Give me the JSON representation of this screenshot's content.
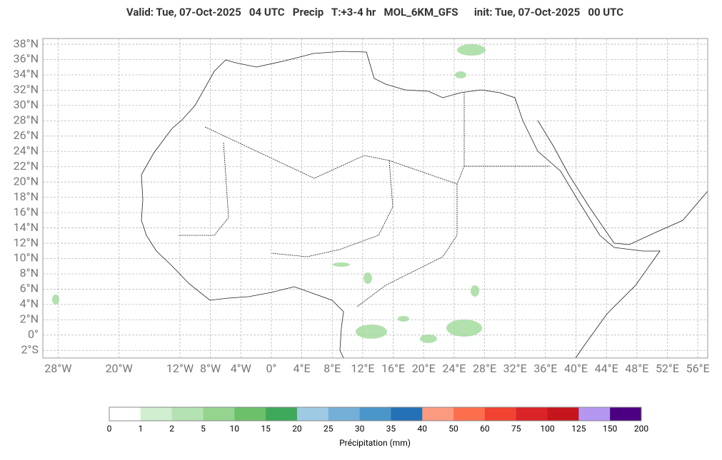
{
  "header": {
    "title": "Valid: Tue, 07-Oct-2025   04 UTC   Precip   T:+3-4 hr   MOL_6KM_GFS      init: Tue, 07-Oct-2025   00 UTC"
  },
  "map": {
    "lat_ticks": [
      {
        "value": 38,
        "label": "38°N"
      },
      {
        "value": 36,
        "label": "36°N"
      },
      {
        "value": 34,
        "label": "34°N"
      },
      {
        "value": 32,
        "label": "32°N"
      },
      {
        "value": 30,
        "label": "30°N"
      },
      {
        "value": 28,
        "label": "28°N"
      },
      {
        "value": 26,
        "label": "26°N"
      },
      {
        "value": 24,
        "label": "24°N"
      },
      {
        "value": 22,
        "label": "22°N"
      },
      {
        "value": 20,
        "label": "20°N"
      },
      {
        "value": 18,
        "label": "18°N"
      },
      {
        "value": 16,
        "label": "16°N"
      },
      {
        "value": 14,
        "label": "14°N"
      },
      {
        "value": 12,
        "label": "12°N"
      },
      {
        "value": 10,
        "label": "10°N"
      },
      {
        "value": 8,
        "label": "8°N"
      },
      {
        "value": 6,
        "label": "6°N"
      },
      {
        "value": 4,
        "label": "4°N"
      },
      {
        "value": 2,
        "label": "2°N"
      },
      {
        "value": 0,
        "label": "0°"
      },
      {
        "value": -2,
        "label": "2°S"
      }
    ],
    "lon_ticks": [
      {
        "value": -28,
        "label": "28°W"
      },
      {
        "value": -20,
        "label": "20°W"
      },
      {
        "value": -12,
        "label": "12°W"
      },
      {
        "value": -8,
        "label": "8°W"
      },
      {
        "value": -4,
        "label": "4°W"
      },
      {
        "value": 0,
        "label": "0°"
      },
      {
        "value": 4,
        "label": "4°E"
      },
      {
        "value": 8,
        "label": "8°E"
      },
      {
        "value": 12,
        "label": "12°E"
      },
      {
        "value": 16,
        "label": "16°E"
      },
      {
        "value": 20,
        "label": "20°E"
      },
      {
        "value": 24,
        "label": "24°E"
      },
      {
        "value": 28,
        "label": "28°E"
      },
      {
        "value": 32,
        "label": "32°E"
      },
      {
        "value": 36,
        "label": "36°E"
      },
      {
        "value": 40,
        "label": "40°E"
      },
      {
        "value": 44,
        "label": "44°E"
      },
      {
        "value": 48,
        "label": "48°E"
      },
      {
        "value": 52,
        "label": "52°E"
      },
      {
        "value": 56,
        "label": "56°E"
      }
    ]
  },
  "colorbar": {
    "label": "Précipitation (mm)",
    "bounds": [
      0,
      1,
      2,
      5,
      10,
      15,
      20,
      25,
      30,
      35,
      40,
      50,
      60,
      75,
      100,
      125,
      150,
      200
    ],
    "colors": [
      "#ffffff",
      "#d0efd0",
      "#b5e2b2",
      "#95d48f",
      "#6cc06a",
      "#3ea95b",
      "#9fcae4",
      "#74afd8",
      "#4b96c9",
      "#2571b5",
      "#fc9a7f",
      "#fb6f4d",
      "#f04331",
      "#da2427",
      "#c4161c",
      "#b497f0",
      "#4b0082"
    ]
  }
}
